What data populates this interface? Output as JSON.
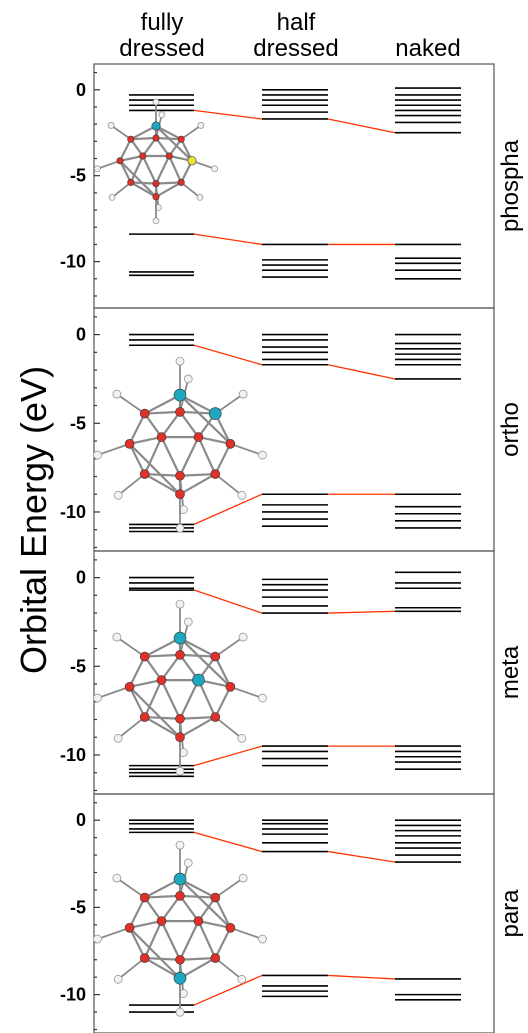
{
  "axis": {
    "ylabel": "Orbital Energy (eV)"
  },
  "columns": [
    {
      "line1": "fully",
      "line2": "dressed"
    },
    {
      "line1": "half",
      "line2": "dressed"
    },
    {
      "line1": "",
      "line2": "naked"
    }
  ],
  "colors": {
    "level": "#000000",
    "connector": "#ff3300",
    "boron": "#e0302a",
    "carbon": "#1fa7c0",
    "phosphorus": "#e8e830",
    "hydrogen": "#f2f2f2"
  },
  "chart_data": [
    {
      "type": "energy-level-diagram",
      "panel_label": "phospha",
      "yticks": [
        0,
        -5,
        -10
      ],
      "ylim": [
        1.5,
        -12.7
      ],
      "levels": {
        "fully_dressed": [
          -0.3,
          -0.6,
          -0.9,
          -1.2,
          -8.4,
          -10.6,
          -10.8
        ],
        "half_dressed": [
          0.0,
          -0.3,
          -0.6,
          -0.9,
          -1.3,
          -1.7,
          -9.0,
          -9.9,
          -10.2,
          -10.5,
          -10.9
        ],
        "naked": [
          0.1,
          -0.3,
          -0.6,
          -0.9,
          -1.2,
          -1.5,
          -1.9,
          -2.5,
          -9.0,
          -9.8,
          -10.1,
          -10.5,
          -11.0
        ]
      },
      "connectors": [
        {
          "from": "fully_dressed",
          "to": "half_dressed",
          "y1": -1.2,
          "y2": -1.7
        },
        {
          "from": "half_dressed",
          "to": "naked",
          "y1": -1.7,
          "y2": -2.5
        },
        {
          "from": "fully_dressed",
          "to": "half_dressed",
          "y1": -8.4,
          "y2": -9.0
        },
        {
          "from": "half_dressed",
          "to": "naked",
          "y1": -9.0,
          "y2": -9.0
        }
      ],
      "molecule": {
        "cage": "small",
        "carbon": [
          0
        ],
        "phosphorus": [
          5
        ]
      }
    },
    {
      "type": "energy-level-diagram",
      "panel_label": "ortho",
      "yticks": [
        0,
        -5,
        -10
      ],
      "ylim": [
        1.5,
        -12.2
      ],
      "levels": {
        "fully_dressed": [
          0.0,
          -0.3,
          -0.6,
          -10.7,
          -10.9,
          -11.1
        ],
        "half_dressed": [
          0.0,
          -0.3,
          -0.7,
          -1.0,
          -1.4,
          -1.7,
          -9.0,
          -9.6,
          -10.0,
          -10.4,
          -10.8
        ],
        "naked": [
          0.0,
          -0.5,
          -0.8,
          -1.1,
          -1.4,
          -1.7,
          -2.5,
          -9.0,
          -9.7,
          -10.1,
          -10.5,
          -10.9
        ]
      },
      "connectors": [
        {
          "from": "fully_dressed",
          "to": "half_dressed",
          "y1": -0.6,
          "y2": -1.7
        },
        {
          "from": "half_dressed",
          "to": "naked",
          "y1": -1.7,
          "y2": -2.5
        },
        {
          "from": "fully_dressed",
          "to": "half_dressed",
          "y1": -10.7,
          "y2": -9.0
        },
        {
          "from": "half_dressed",
          "to": "naked",
          "y1": -9.0,
          "y2": -9.0
        }
      ],
      "molecule": {
        "cage": "large",
        "carbon": [
          0,
          3
        ]
      }
    },
    {
      "type": "energy-level-diagram",
      "panel_label": "meta",
      "yticks": [
        0,
        -5,
        -10
      ],
      "ylim": [
        1.5,
        -12.2
      ],
      "levels": {
        "fully_dressed": [
          0.0,
          -0.3,
          -0.6,
          -0.7,
          -10.6,
          -10.8,
          -11.0,
          -11.2
        ],
        "half_dressed": [
          -0.1,
          -0.4,
          -0.7,
          -1.1,
          -1.6,
          -2.0,
          -9.5,
          -9.8,
          -10.2,
          -10.6
        ],
        "naked": [
          0.3,
          -0.3,
          -0.6,
          -1.7,
          -1.9,
          -9.5,
          -9.8,
          -10.1,
          -10.4,
          -10.8
        ]
      },
      "connectors": [
        {
          "from": "fully_dressed",
          "to": "half_dressed",
          "y1": -0.7,
          "y2": -2.0
        },
        {
          "from": "half_dressed",
          "to": "naked",
          "y1": -2.0,
          "y2": -1.9
        },
        {
          "from": "fully_dressed",
          "to": "half_dressed",
          "y1": -10.6,
          "y2": -9.5
        },
        {
          "from": "half_dressed",
          "to": "naked",
          "y1": -9.5,
          "y2": -9.5
        }
      ],
      "molecule": {
        "cage": "large",
        "carbon": [
          0,
          7
        ]
      }
    },
    {
      "type": "energy-level-diagram",
      "panel_label": "para",
      "yticks": [
        0,
        -5,
        -10
      ],
      "ylim": [
        1.5,
        -12.2
      ],
      "levels": {
        "fully_dressed": [
          0.0,
          -0.2,
          -0.5,
          -0.7,
          -10.6,
          -11.0
        ],
        "half_dressed": [
          0.0,
          -0.2,
          -0.5,
          -0.8,
          -1.3,
          -1.8,
          -8.9,
          -9.5,
          -9.8,
          -10.1
        ],
        "naked": [
          0.0,
          -0.3,
          -0.6,
          -0.9,
          -1.3,
          -1.6,
          -2.0,
          -2.4,
          -9.1,
          -10.0,
          -10.3
        ]
      },
      "connectors": [
        {
          "from": "fully_dressed",
          "to": "half_dressed",
          "y1": -0.7,
          "y2": -1.8
        },
        {
          "from": "half_dressed",
          "to": "naked",
          "y1": -1.8,
          "y2": -2.4
        },
        {
          "from": "fully_dressed",
          "to": "half_dressed",
          "y1": -10.6,
          "y2": -8.9
        },
        {
          "from": "half_dressed",
          "to": "naked",
          "y1": -8.9,
          "y2": -9.1
        }
      ],
      "molecule": {
        "cage": "large",
        "carbon": [
          0,
          11
        ]
      }
    }
  ]
}
